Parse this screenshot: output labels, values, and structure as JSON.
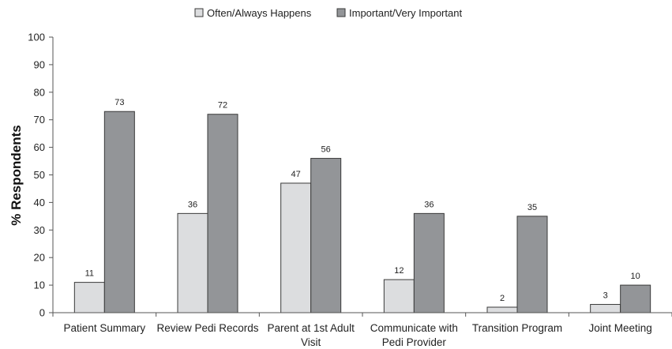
{
  "chart_data": {
    "type": "bar",
    "title": "",
    "xlabel": "",
    "ylabel": "% Respondents",
    "ylim": [
      0,
      100
    ],
    "yticks": [
      0,
      10,
      20,
      30,
      40,
      50,
      60,
      70,
      80,
      90,
      100
    ],
    "grid": false,
    "legend_position": "top-center",
    "categories": [
      [
        "Patient Summary"
      ],
      [
        "Review Pedi Records"
      ],
      [
        "Parent at 1st Adult",
        "Visit"
      ],
      [
        "Communicate with",
        "Pedi Provider"
      ],
      [
        "Transition Program"
      ],
      [
        "Joint Meeting"
      ]
    ],
    "series": [
      {
        "name": "Often/Always Happens",
        "color": "#dcdddf",
        "values": [
          11,
          36,
          47,
          12,
          2,
          3
        ]
      },
      {
        "name": "Important/Very Important",
        "color": "#939598",
        "values": [
          73,
          72,
          56,
          36,
          35,
          10
        ]
      }
    ],
    "data_labels": true
  }
}
